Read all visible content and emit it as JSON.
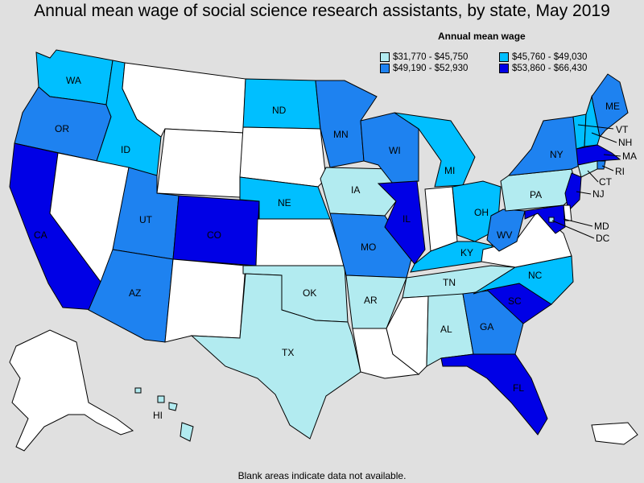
{
  "title": "Annual mean wage of social science research assistants, by state, May 2019",
  "legend": {
    "title": "Annual mean wage",
    "items": [
      {
        "label": "$31,770 - $45,750",
        "color": "#b2ebf0"
      },
      {
        "label": "$45,760 - $49,030",
        "color": "#00bfff"
      },
      {
        "label": "$49,190 - $52,930",
        "color": "#1e82f0"
      },
      {
        "label": "$53,860 - $66,430",
        "color": "#0000e6"
      }
    ]
  },
  "footnote": "Blank areas indicate data not available.",
  "colors": {
    "no_data": "#ffffff",
    "background": "#e0e0e0"
  },
  "states": [
    {
      "abbr": "WA",
      "class": 1
    },
    {
      "abbr": "OR",
      "class": 2
    },
    {
      "abbr": "CA",
      "class": 3
    },
    {
      "abbr": "ID",
      "class": 1
    },
    {
      "abbr": "NV",
      "class": null
    },
    {
      "abbr": "MT",
      "class": null
    },
    {
      "abbr": "WY",
      "class": null
    },
    {
      "abbr": "UT",
      "class": 2
    },
    {
      "abbr": "AZ",
      "class": 2
    },
    {
      "abbr": "CO",
      "class": 3
    },
    {
      "abbr": "NM",
      "class": null
    },
    {
      "abbr": "ND",
      "class": 1
    },
    {
      "abbr": "SD",
      "class": null
    },
    {
      "abbr": "NE",
      "class": 1
    },
    {
      "abbr": "KS",
      "class": null
    },
    {
      "abbr": "OK",
      "class": 0
    },
    {
      "abbr": "TX",
      "class": 0
    },
    {
      "abbr": "MN",
      "class": 2
    },
    {
      "abbr": "IA",
      "class": 0
    },
    {
      "abbr": "MO",
      "class": 2
    },
    {
      "abbr": "AR",
      "class": 0
    },
    {
      "abbr": "LA",
      "class": null
    },
    {
      "abbr": "WI",
      "class": 2
    },
    {
      "abbr": "IL",
      "class": 3
    },
    {
      "abbr": "MI",
      "class": 1
    },
    {
      "abbr": "IN",
      "class": null
    },
    {
      "abbr": "OH",
      "class": 1
    },
    {
      "abbr": "KY",
      "class": 1
    },
    {
      "abbr": "TN",
      "class": 0
    },
    {
      "abbr": "MS",
      "class": null
    },
    {
      "abbr": "AL",
      "class": 0
    },
    {
      "abbr": "GA",
      "class": 2
    },
    {
      "abbr": "FL",
      "class": 3
    },
    {
      "abbr": "SC",
      "class": 3
    },
    {
      "abbr": "NC",
      "class": 1
    },
    {
      "abbr": "VA",
      "class": null
    },
    {
      "abbr": "WV",
      "class": 2
    },
    {
      "abbr": "PA",
      "class": 0
    },
    {
      "abbr": "NY",
      "class": 2
    },
    {
      "abbr": "ME",
      "class": 2
    },
    {
      "abbr": "VT",
      "class": 1
    },
    {
      "abbr": "NH",
      "class": 1
    },
    {
      "abbr": "MA",
      "class": 3
    },
    {
      "abbr": "RI",
      "class": 2
    },
    {
      "abbr": "CT",
      "class": 0
    },
    {
      "abbr": "NJ",
      "class": 3
    },
    {
      "abbr": "DE",
      "class": null
    },
    {
      "abbr": "MD",
      "class": 3
    },
    {
      "abbr": "DC",
      "class": 0
    },
    {
      "abbr": "AK",
      "class": null
    },
    {
      "abbr": "HI",
      "class": 0
    },
    {
      "abbr": "PR",
      "class": null
    }
  ]
}
